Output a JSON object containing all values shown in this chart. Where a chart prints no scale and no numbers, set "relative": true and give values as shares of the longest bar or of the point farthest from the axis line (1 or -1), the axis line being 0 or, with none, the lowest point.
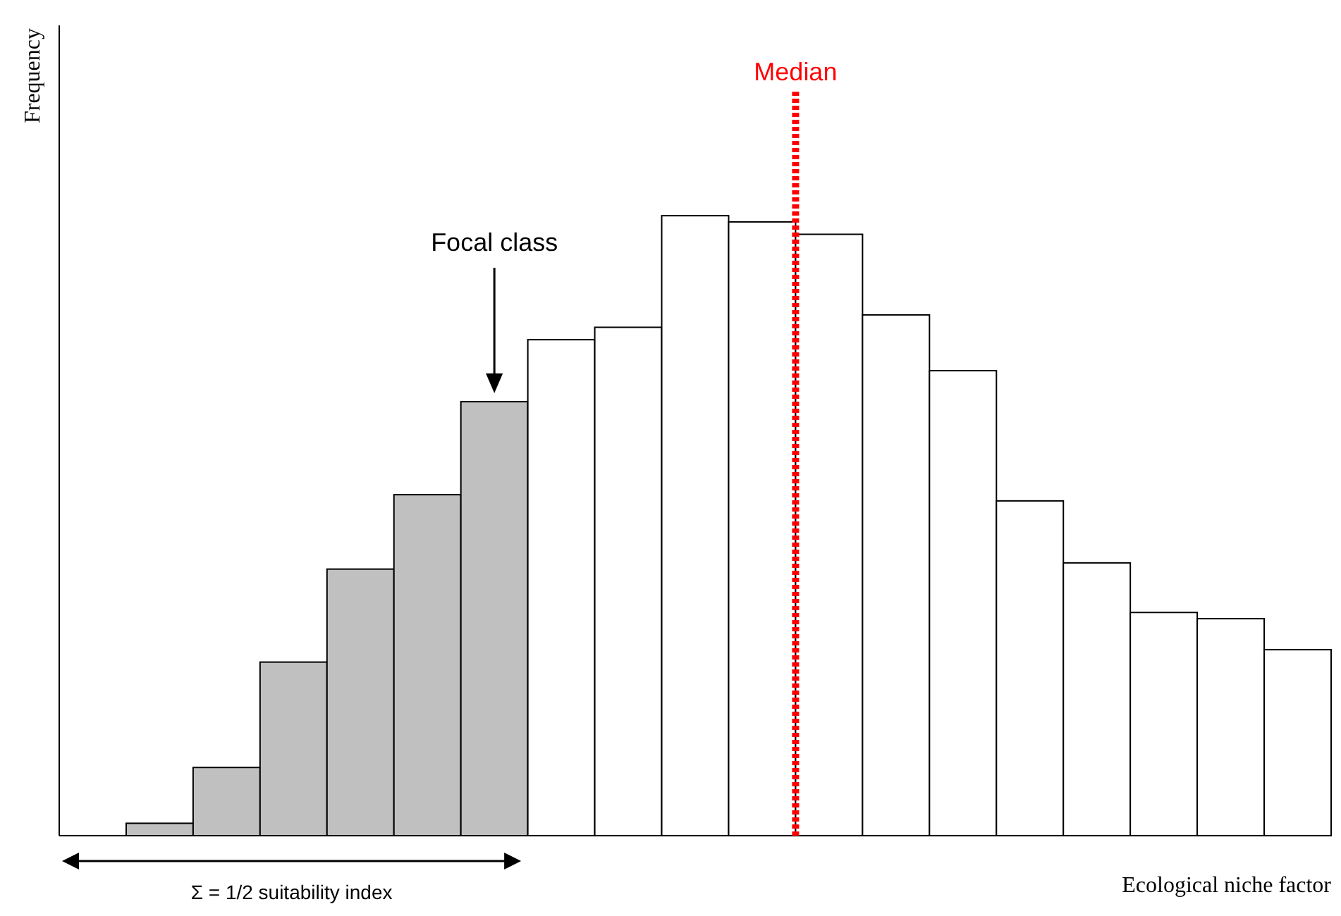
{
  "chart_data": {
    "type": "bar",
    "relative": true,
    "xlabel": "Ecological niche factor",
    "categories": [
      null,
      null,
      null,
      null,
      null,
      null,
      null,
      null,
      null,
      null,
      null,
      null,
      null,
      null,
      null,
      null,
      null,
      null
    ],
    "values": [
      0.02,
      0.11,
      0.28,
      0.43,
      0.55,
      0.7,
      0.8,
      0.82,
      1,
      0.99,
      0.97,
      0.84,
      0.75,
      0.54,
      0.44,
      0.36,
      0.35,
      0.3
    ],
    "colors": [
      "#c0c0c0",
      "#c0c0c0",
      "#c0c0c0",
      "#c0c0c0",
      "#c0c0c0",
      "#c0c0c0",
      "#ffffff",
      "#ffffff",
      "#ffffff",
      "#ffffff",
      "#ffffff",
      "#ffffff",
      "#ffffff",
      "#ffffff",
      "#ffffff",
      "#ffffff",
      "#ffffff",
      "#ffffff"
    ],
    "annotations": [
      "Focal class",
      "Median",
      "Σ = 1/2 suitability index",
      "Frequency"
    ]
  }
}
